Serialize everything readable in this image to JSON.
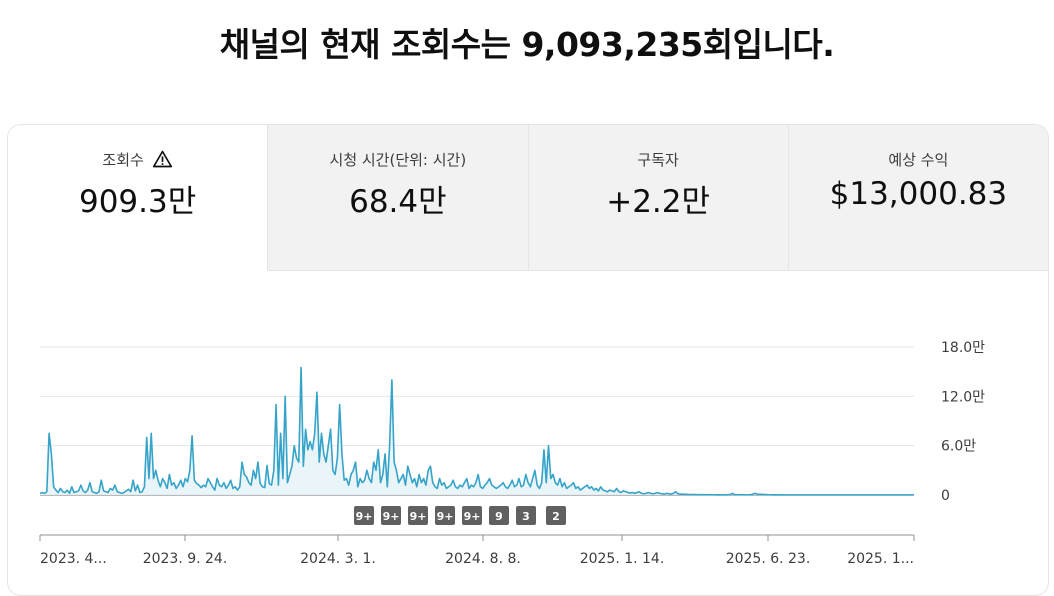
{
  "headline": "채널의 현재 조회수는 9,093,235회입니다.",
  "tabs": [
    {
      "label": "조회수",
      "value": "909.3만",
      "active": true,
      "icon": "warning-icon"
    },
    {
      "label": "시청 시간(단위: 시간)",
      "value": "68.4만",
      "active": false
    },
    {
      "label": "구독자",
      "value": "+2.2만",
      "active": false
    },
    {
      "label": "예상 수익",
      "value": "$13,000.83",
      "active": false
    }
  ],
  "colors": {
    "line": "#36a3c9",
    "fill": "#e8f4f8",
    "badge": "#606060",
    "grid": "#e5e5e5"
  },
  "chart_data": {
    "type": "line",
    "y_tick_labels": [
      "18.0만",
      "12.0만",
      "6.0만",
      "0"
    ],
    "y_ticks": [
      180000,
      120000,
      60000,
      0
    ],
    "ylim": [
      0,
      180000
    ],
    "x_tick_labels": [
      "2023. 4...",
      "2023. 9. 24.",
      "2024. 3. 1.",
      "2024. 8. 8.",
      "2025. 1. 14.",
      "2025. 6. 23.",
      "2025. 1..."
    ],
    "badges": [
      "9+",
      "9+",
      "9+",
      "9+",
      "9+",
      "9",
      "3",
      "2"
    ],
    "series": [
      {
        "values": [
          2000,
          3000,
          2000,
          4000,
          75000,
          50000,
          10000,
          6000,
          3000,
          8000,
          4000,
          3000,
          6000,
          2000,
          10000,
          3000,
          4000,
          5000,
          12000,
          5000,
          3000,
          6000,
          15000,
          4000,
          3000,
          2000,
          4000,
          18000,
          5000,
          4000,
          3000,
          8000,
          6000,
          12000,
          4000,
          3000,
          2000,
          3000,
          5000,
          7000,
          4000,
          18000,
          5000,
          12000,
          3000,
          4000,
          10000,
          70000,
          20000,
          75000,
          20000,
          30000,
          18000,
          10000,
          20000,
          15000,
          8000,
          25000,
          12000,
          15000,
          8000,
          12000,
          18000,
          10000,
          20000,
          16000,
          30000,
          72000,
          18000,
          14000,
          12000,
          9000,
          12000,
          10000,
          20000,
          15000,
          10000,
          6000,
          20000,
          12000,
          10000,
          15000,
          8000,
          12000,
          18000,
          8000,
          10000,
          6000,
          10000,
          40000,
          25000,
          22000,
          15000,
          12000,
          30000,
          20000,
          40000,
          14000,
          10000,
          9000,
          36000,
          14000,
          12000,
          30000,
          110000,
          12000,
          75000,
          20000,
          120000,
          15000,
          25000,
          35000,
          60000,
          45000,
          40000,
          155000,
          35000,
          80000,
          55000,
          65000,
          55000,
          75000,
          125000,
          40000,
          75000,
          50000,
          40000,
          60000,
          80000,
          30000,
          25000,
          45000,
          110000,
          50000,
          18000,
          20000,
          12000,
          25000,
          30000,
          40000,
          10000,
          20000,
          15000,
          18000,
          30000,
          20000,
          15000,
          40000,
          30000,
          55000,
          15000,
          25000,
          50000,
          10000,
          60000,
          140000,
          40000,
          30000,
          15000,
          20000,
          25000,
          12000,
          35000,
          25000,
          15000,
          20000,
          10000,
          25000,
          15000,
          20000,
          12000,
          30000,
          35000,
          15000,
          10000,
          8000,
          20000,
          12000,
          15000,
          8000,
          10000,
          12000,
          18000,
          10000,
          8000,
          12000,
          10000,
          15000,
          20000,
          8000,
          12000,
          10000,
          15000,
          25000,
          10000,
          8000,
          12000,
          15000,
          20000,
          12000,
          10000,
          8000,
          10000,
          12000,
          15000,
          10000,
          8000,
          12000,
          18000,
          10000,
          12000,
          20000,
          10000,
          12000,
          25000,
          15000,
          10000,
          20000,
          30000,
          12000,
          8000,
          15000,
          55000,
          15000,
          60000,
          20000,
          25000,
          15000,
          12000,
          20000,
          10000,
          15000,
          8000,
          10000,
          12000,
          15000,
          8000,
          10000,
          6000,
          8000,
          10000,
          12000,
          8000,
          10000,
          6000,
          8000,
          5000,
          10000,
          6000,
          5000,
          4000,
          6000,
          5000,
          4000,
          8000,
          4000,
          3000,
          5000,
          4000,
          3000,
          2500,
          3000,
          2000,
          3000,
          4000,
          2000,
          1500,
          2000,
          3000,
          2000,
          1500,
          2000,
          3000,
          2000,
          1500,
          1000,
          2000,
          1500,
          1000,
          2000,
          4000,
          1500,
          1000,
          1000,
          800,
          800,
          600,
          600,
          500,
          500,
          400,
          400,
          400,
          300,
          300,
          300,
          300,
          300,
          250,
          250,
          250,
          200,
          200,
          300,
          500,
          2000,
          500,
          300,
          300,
          300,
          300,
          300,
          300,
          300,
          1000,
          2000,
          1000,
          800,
          800,
          500,
          500,
          300,
          300,
          200,
          200,
          200,
          200,
          200,
          200,
          150,
          150,
          150,
          150,
          150,
          150,
          150,
          150,
          150,
          150,
          150,
          150,
          150,
          150,
          150,
          150,
          150,
          150,
          150,
          150,
          150,
          150,
          150,
          150,
          150,
          150,
          150,
          150,
          150,
          150,
          150,
          150,
          150,
          150,
          150,
          150,
          150,
          150,
          150,
          150,
          150,
          150,
          150,
          150,
          150,
          150,
          150,
          150,
          150,
          150,
          150,
          150,
          150,
          150,
          150,
          150,
          150
        ]
      }
    ]
  }
}
